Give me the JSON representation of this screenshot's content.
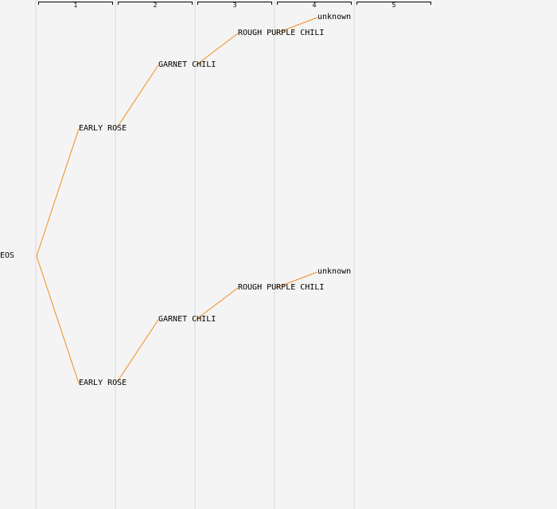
{
  "generations": [
    "1",
    "2",
    "3",
    "4",
    "5"
  ],
  "edge_color": "#f28c1e",
  "nodes": {
    "root": "EOS",
    "early_rose_top": "EARLY ROSE",
    "garnet_chili_top": "GARNET CHILI",
    "rough_purple_chili_top": "ROUGH PURPLE CHILI",
    "unknown_top": "unknown",
    "early_rose_bottom": "EARLY ROSE",
    "garnet_chili_bottom": "GARNET CHILI",
    "rough_purple_chili_bottom": "ROUGH PURPLE CHILI",
    "unknown_bottom": "unknown"
  }
}
